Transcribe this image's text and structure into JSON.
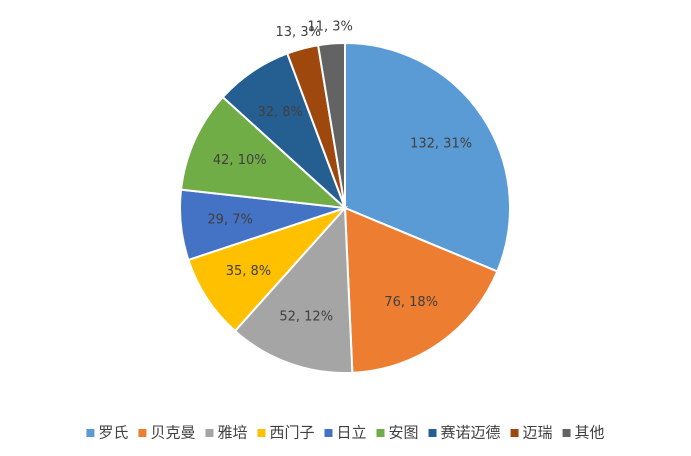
{
  "chart_data": {
    "type": "pie",
    "categories": [
      "罗氏",
      "贝克曼",
      "雅培",
      "西门子",
      "日立",
      "安图",
      "赛诺迈德",
      "迈瑞",
      "其他"
    ],
    "values": [
      132,
      76,
      52,
      35,
      29,
      42,
      32,
      13,
      11
    ],
    "value_labels": [
      "132, 31%",
      "76, 18%",
      "52, 12%",
      "35, 8%",
      "29, 7%",
      "42, 10%",
      "32, 8%",
      "13, 3%",
      "11, 3%"
    ],
    "colors": [
      "#5b9bd5",
      "#ed7d31",
      "#a5a5a5",
      "#ffc000",
      "#4472c4",
      "#70ad47",
      "#255e91",
      "#9e480e",
      "#636363"
    ],
    "legend": "bottom"
  }
}
